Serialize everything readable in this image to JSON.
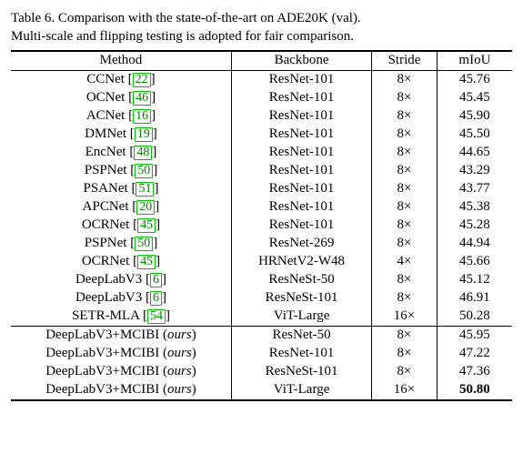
{
  "caption_line1": "Table 6.   Comparison with the state-of-the-art on ADE20K (val).",
  "caption_line2": "Multi-scale and flipping testing is adopted for fair comparison.",
  "headers": {
    "method": "Method",
    "backbone": "Backbone",
    "stride": "Stride",
    "miou": "mIoU"
  },
  "cite_color": "#008000",
  "cite_border_color": "#00c000",
  "ours_label": "ours",
  "rows_top": [
    {
      "method": "CCNet",
      "cite": "22",
      "backbone": "ResNet-101",
      "stride": "8×",
      "miou": "45.76"
    },
    {
      "method": "OCNet",
      "cite": "46",
      "backbone": "ResNet-101",
      "stride": "8×",
      "miou": "45.45"
    },
    {
      "method": "ACNet",
      "cite": "16",
      "backbone": "ResNet-101",
      "stride": "8×",
      "miou": "45.90"
    },
    {
      "method": "DMNet",
      "cite": "19",
      "backbone": "ResNet-101",
      "stride": "8×",
      "miou": "45.50"
    },
    {
      "method": "EncNet",
      "cite": "48",
      "backbone": "ResNet-101",
      "stride": "8×",
      "miou": "44.65"
    },
    {
      "method": "PSPNet",
      "cite": "50",
      "backbone": "ResNet-101",
      "stride": "8×",
      "miou": "43.29"
    },
    {
      "method": "PSANet",
      "cite": "51",
      "backbone": "ResNet-101",
      "stride": "8×",
      "miou": "43.77"
    },
    {
      "method": "APCNet",
      "cite": "20",
      "backbone": "ResNet-101",
      "stride": "8×",
      "miou": "45.38"
    },
    {
      "method": "OCRNet",
      "cite": "45",
      "backbone": "ResNet-101",
      "stride": "8×",
      "miou": "45.28"
    },
    {
      "method": "PSPNet",
      "cite": "50",
      "backbone": "ResNet-269",
      "stride": "8×",
      "miou": "44.94"
    },
    {
      "method": "OCRNet",
      "cite": "45",
      "backbone": "HRNetV2-W48",
      "stride": "4×",
      "miou": "45.66"
    },
    {
      "method": "DeepLabV3",
      "cite": "6",
      "backbone": "ResNeSt-50",
      "stride": "8×",
      "miou": "45.12"
    },
    {
      "method": "DeepLabV3",
      "cite": "6",
      "backbone": "ResNeSt-101",
      "stride": "8×",
      "miou": "46.91"
    },
    {
      "method": "SETR-MLA",
      "cite": "54",
      "backbone": "ViT-Large",
      "stride": "16×",
      "miou": "50.28"
    }
  ],
  "rows_bottom": [
    {
      "method": "DeepLabV3+MCIBI",
      "backbone": "ResNet-50",
      "stride": "8×",
      "miou": "45.95",
      "bold": false
    },
    {
      "method": "DeepLabV3+MCIBI",
      "backbone": "ResNet-101",
      "stride": "8×",
      "miou": "47.22",
      "bold": false
    },
    {
      "method": "DeepLabV3+MCIBI",
      "backbone": "ResNeSt-101",
      "stride": "8×",
      "miou": "47.36",
      "bold": false
    },
    {
      "method": "DeepLabV3+MCIBI",
      "backbone": "ViT-Large",
      "stride": "16×",
      "miou": "50.80",
      "bold": true
    }
  ]
}
